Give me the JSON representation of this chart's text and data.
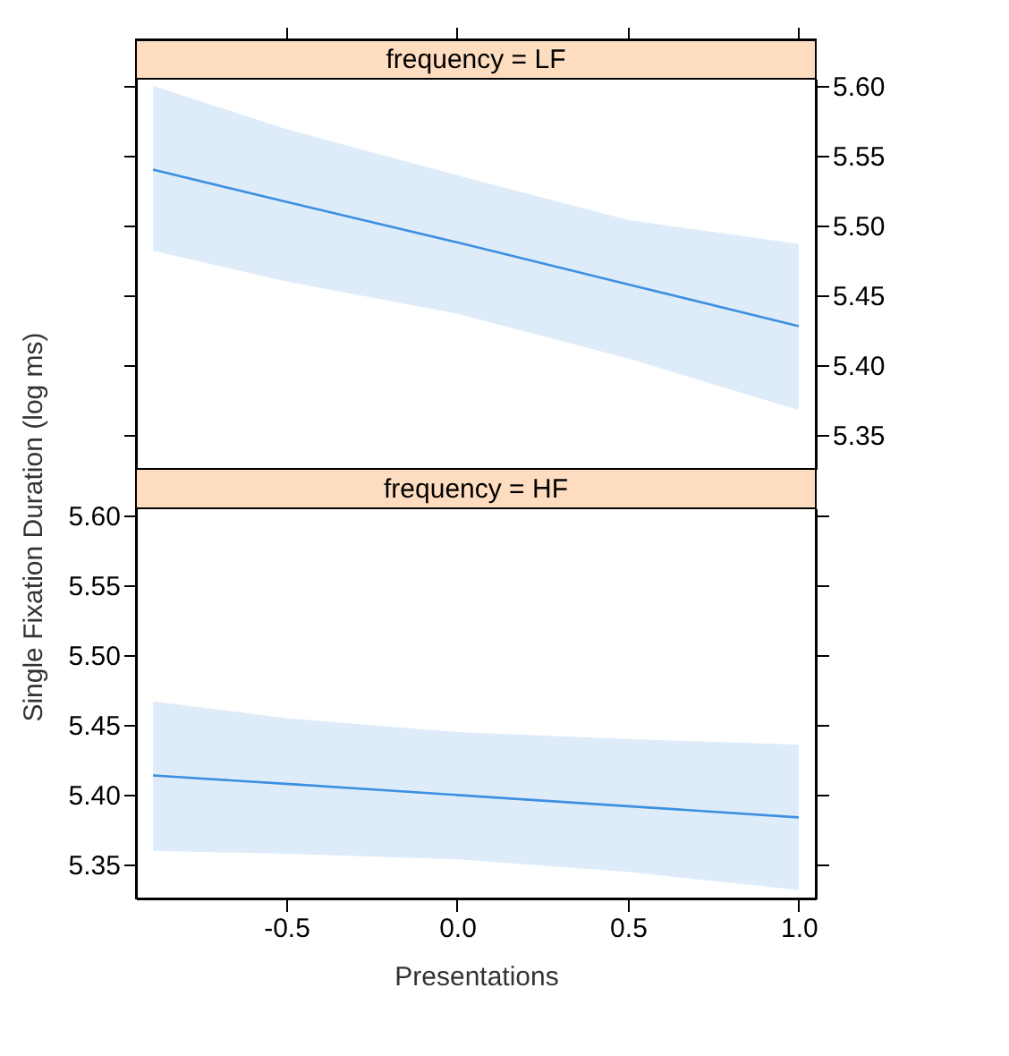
{
  "chart_data": [
    {
      "type": "line",
      "title": "frequency = LF",
      "xlim": [
        -0.94,
        1.05
      ],
      "ylim": [
        5.326,
        5.605
      ],
      "yticks": [
        {
          "value": 5.35,
          "label": "5.35"
        },
        {
          "value": 5.4,
          "label": "5.40"
        },
        {
          "value": 5.45,
          "label": "5.45"
        },
        {
          "value": 5.5,
          "label": "5.50"
        },
        {
          "value": 5.55,
          "label": "5.55"
        },
        {
          "value": 5.6,
          "label": "5.60"
        }
      ],
      "tick_labels": "y",
      "series": [
        {
          "color": "#3d8fe0",
          "x": [
            -0.89,
            -0.5,
            0,
            0.5,
            1.0
          ],
          "values": [
            5.54,
            5.517,
            5.488,
            5.458,
            5.428
          ],
          "lower": [
            5.482,
            5.46,
            5.437,
            5.405,
            5.368
          ],
          "upper": [
            5.6,
            5.569,
            5.536,
            5.504,
            5.487
          ]
        }
      ]
    },
    {
      "type": "line",
      "title": "frequency = HF",
      "xlabel": "Presentations",
      "ylabel": "Single Fixation Duration (log ms)",
      "xlim": [
        -0.94,
        1.05
      ],
      "xticks": [
        -0.5,
        {
          "value": 0,
          "label": "0.0"
        },
        0.5,
        {
          "value": 1,
          "label": "1.0"
        }
      ],
      "ylim": [
        5.326,
        5.605
      ],
      "yticks": [
        {
          "value": 5.35,
          "label": "5.35"
        },
        {
          "value": 5.4,
          "label": "5.40"
        },
        {
          "value": 5.45,
          "label": "5.45"
        },
        {
          "value": 5.5,
          "label": "5.50"
        },
        {
          "value": 5.55,
          "label": "5.55"
        },
        {
          "value": 5.6,
          "label": "5.60"
        }
      ],
      "series": [
        {
          "color": "#3d8fe0",
          "x": [
            -0.89,
            -0.5,
            0,
            0.5,
            1.0
          ],
          "values": [
            5.414,
            5.408,
            5.4,
            5.392,
            5.384
          ],
          "lower": [
            5.36,
            5.358,
            5.354,
            5.345,
            5.332
          ],
          "upper": [
            5.467,
            5.455,
            5.445,
            5.44,
            5.436
          ]
        }
      ]
    }
  ]
}
